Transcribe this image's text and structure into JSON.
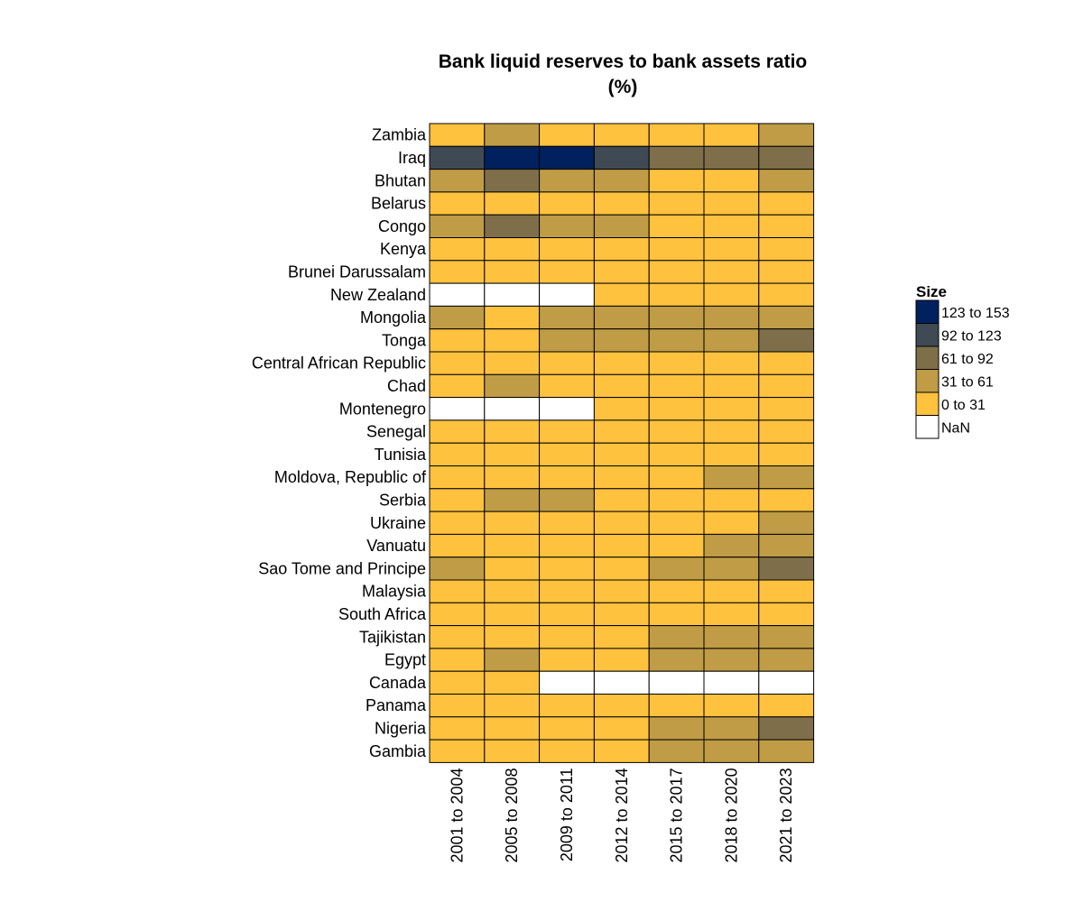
{
  "chart_data": {
    "type": "heatmap",
    "title": "Bank liquid reserves to bank assets ratio",
    "subtitle": "(%)",
    "x": [
      "2001 to 2004",
      "2005 to 2008",
      "2009 to 2011",
      "2012 to 2014",
      "2015 to 2017",
      "2018 to 2020",
      "2021 to 2023"
    ],
    "y": [
      "Zambia",
      "Iraq",
      "Bhutan",
      "Belarus",
      "Congo",
      "Kenya",
      "Brunei Darussalam",
      "New Zealand",
      "Mongolia",
      "Tonga",
      "Central African Republic",
      "Chad",
      "Montenegro",
      "Senegal",
      "Tunisia",
      "Moldova, Republic of",
      "Serbia",
      "Ukraine",
      "Vanuatu",
      "Sao Tome and Principe",
      "Malaysia",
      "South Africa",
      "Tajikistan",
      "Egypt",
      "Canada",
      "Panama",
      "Nigeria",
      "Gambia"
    ],
    "values": [
      [
        15,
        45,
        15,
        15,
        15,
        15,
        45
      ],
      [
        105,
        145,
        145,
        105,
        75,
        75,
        75
      ],
      [
        45,
        75,
        45,
        45,
        15,
        15,
        45
      ],
      [
        15,
        15,
        15,
        15,
        15,
        15,
        15
      ],
      [
        45,
        75,
        45,
        45,
        15,
        15,
        15
      ],
      [
        15,
        15,
        15,
        15,
        15,
        15,
        15
      ],
      [
        15,
        15,
        15,
        15,
        15,
        15,
        15
      ],
      [
        null,
        null,
        null,
        15,
        15,
        15,
        15
      ],
      [
        45,
        15,
        45,
        45,
        45,
        45,
        45
      ],
      [
        15,
        15,
        45,
        45,
        45,
        45,
        75
      ],
      [
        15,
        15,
        15,
        15,
        15,
        15,
        15
      ],
      [
        15,
        45,
        15,
        15,
        15,
        15,
        15
      ],
      [
        null,
        null,
        null,
        15,
        15,
        15,
        15
      ],
      [
        15,
        15,
        15,
        15,
        15,
        15,
        15
      ],
      [
        15,
        15,
        15,
        15,
        15,
        15,
        15
      ],
      [
        15,
        15,
        15,
        15,
        15,
        45,
        45
      ],
      [
        15,
        45,
        45,
        15,
        15,
        15,
        15
      ],
      [
        15,
        15,
        15,
        15,
        15,
        15,
        45
      ],
      [
        15,
        15,
        15,
        15,
        15,
        45,
        45
      ],
      [
        45,
        15,
        15,
        15,
        45,
        45,
        75
      ],
      [
        15,
        15,
        15,
        15,
        15,
        15,
        15
      ],
      [
        15,
        15,
        15,
        15,
        15,
        15,
        15
      ],
      [
        15,
        15,
        15,
        15,
        45,
        45,
        45
      ],
      [
        15,
        45,
        15,
        15,
        45,
        45,
        45
      ],
      [
        15,
        15,
        null,
        null,
        null,
        null,
        null
      ],
      [
        15,
        15,
        15,
        15,
        15,
        15,
        15
      ],
      [
        15,
        15,
        15,
        15,
        45,
        45,
        75
      ],
      [
        15,
        15,
        15,
        15,
        45,
        45,
        45
      ]
    ],
    "legend": {
      "title": "Size",
      "position": "right",
      "bins": [
        {
          "label": "123  to  153",
          "min": 123,
          "max": 153,
          "color": "#00215e"
        },
        {
          "label": "92  to  123",
          "min": 92,
          "max": 123,
          "color": "#3f4a55"
        },
        {
          "label": "61  to  92",
          "min": 61,
          "max": 92,
          "color": "#7e6f4a"
        },
        {
          "label": "31  to  61",
          "min": 31,
          "max": 61,
          "color": "#bf9c45"
        },
        {
          "label": "0  to  31",
          "min": 0,
          "max": 31,
          "color": "#ffc23e"
        },
        {
          "label": "NaN",
          "min": null,
          "max": null,
          "color": "#ffffff"
        }
      ]
    },
    "grid": false
  }
}
